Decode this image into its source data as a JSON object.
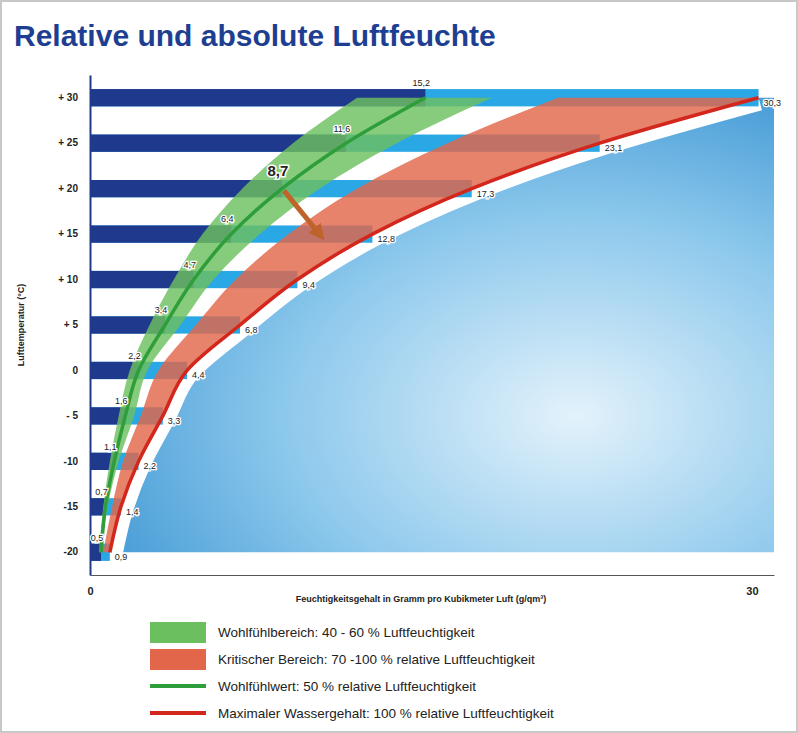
{
  "chart_data": {
    "type": "bar",
    "orientation": "horizontal",
    "title": "Relative und absolute Luftfeuchte",
    "xlabel": "Feuchtigkeitsgehalt in Gramm pro Kubikmeter Luft (g/qm³)",
    "ylabel": "Lufttemperatur (°C)",
    "categories": [
      "+ 30",
      "+ 25",
      "+ 20",
      "+ 15",
      "+ 10",
      "+ 5",
      "0",
      "- 5",
      "-10",
      "-15",
      "-20"
    ],
    "xlim": [
      0,
      31
    ],
    "xticks": [
      0,
      30
    ],
    "grid": false,
    "legend": "bottom",
    "data_labels": true,
    "series": [
      {
        "name": "Wohlfühlbereich: 40 - 60 % Luftfeuchtigkeit",
        "type": "area",
        "color": "#6cbf5f",
        "low": [
          12.1,
          9.2,
          6.9,
          5.1,
          3.8,
          2.7,
          1.8,
          1.3,
          0.9,
          0.6,
          0.4
        ],
        "high": [
          18.2,
          13.9,
          10.4,
          7.7,
          5.6,
          4.1,
          2.6,
          2.0,
          1.3,
          0.8,
          0.5
        ]
      },
      {
        "name": "Kritischer Bereich: 70 -100 % relative Luftfeuchtigkeit",
        "type": "area",
        "color": "#e2674a",
        "low": [
          21.2,
          16.2,
          12.1,
          9.0,
          6.6,
          4.8,
          3.1,
          2.3,
          1.5,
          1.0,
          0.6
        ],
        "high": [
          30.3,
          23.1,
          17.3,
          12.8,
          9.4,
          6.8,
          4.4,
          3.3,
          2.2,
          1.4,
          0.9
        ]
      },
      {
        "type": "bar",
        "color": "#1f3a8c",
        "values": [
          15.2,
          11.6,
          8.7,
          6.4,
          4.7,
          3.4,
          2.2,
          1.6,
          1.1,
          0.7,
          0.5
        ],
        "value_labels": [
          "15,2",
          "11,6",
          null,
          "6,4",
          "4,7",
          "3,4",
          "2,2",
          "1,6",
          "1,1",
          "0,7",
          "0,5"
        ]
      },
      {
        "type": "bar",
        "color": "#2aa8e6",
        "values": [
          30.3,
          23.1,
          17.3,
          12.8,
          9.4,
          6.8,
          4.4,
          3.3,
          2.2,
          1.4,
          0.9
        ],
        "value_labels": [
          "30,3",
          "23,1",
          "17,3",
          "12,8",
          "9,4",
          "6,8",
          "4,4",
          "3,3",
          "2,2",
          "1,4",
          "0,9"
        ]
      },
      {
        "name": "Wohlfühlwert: 50 % relative Luftfeuchtigkeit",
        "type": "line",
        "color": "#2e9e3a",
        "values": [
          15.2,
          11.6,
          8.7,
          6.4,
          4.7,
          3.4,
          2.2,
          1.6,
          1.1,
          0.7,
          0.5
        ]
      },
      {
        "name": "Maximaler Wassergehalt: 100 % relative Luftfeuchtigkeit",
        "type": "line",
        "color": "#d3261c",
        "values": [
          30.3,
          23.1,
          17.3,
          12.8,
          9.4,
          6.8,
          4.4,
          3.3,
          2.2,
          1.4,
          0.9
        ]
      }
    ],
    "annotations": [
      {
        "text": "8,7",
        "x": 8.7,
        "y": "+ 20",
        "arrow_x": 10.4,
        "arrow_y": "+ 15"
      }
    ]
  }
}
